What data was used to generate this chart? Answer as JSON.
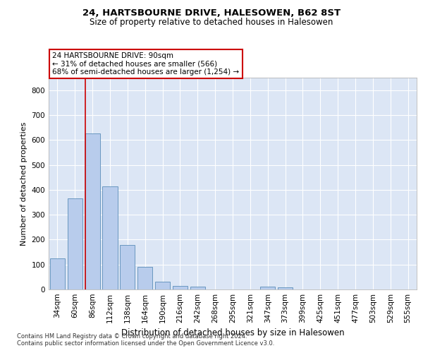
{
  "title1": "24, HARTSBOURNE DRIVE, HALESOWEN, B62 8ST",
  "title2": "Size of property relative to detached houses in Halesowen",
  "xlabel": "Distribution of detached houses by size in Halesowen",
  "ylabel": "Number of detached properties",
  "categories": [
    "34sqm",
    "60sqm",
    "86sqm",
    "112sqm",
    "138sqm",
    "164sqm",
    "190sqm",
    "216sqm",
    "242sqm",
    "268sqm",
    "295sqm",
    "321sqm",
    "347sqm",
    "373sqm",
    "399sqm",
    "425sqm",
    "451sqm",
    "477sqm",
    "503sqm",
    "529sqm",
    "555sqm"
  ],
  "values": [
    125,
    365,
    625,
    415,
    178,
    90,
    32,
    15,
    10,
    0,
    0,
    0,
    10,
    8,
    0,
    0,
    0,
    0,
    0,
    0,
    0
  ],
  "bar_color": "#b8ccec",
  "bar_edge_color": "#5b8db8",
  "background_color": "#dce6f5",
  "grid_color": "#ffffff",
  "vline_color": "#cc0000",
  "vline_x_index": 2,
  "annotation_text": "24 HARTSBOURNE DRIVE: 90sqm\n← 31% of detached houses are smaller (566)\n68% of semi-detached houses are larger (1,254) →",
  "annotation_box_color": "#ffffff",
  "annotation_box_edge_color": "#cc0000",
  "ylim": [
    0,
    850
  ],
  "yticks": [
    0,
    100,
    200,
    300,
    400,
    500,
    600,
    700,
    800
  ],
  "title1_fontsize": 9.5,
  "title2_fontsize": 8.5,
  "xlabel_fontsize": 8.5,
  "ylabel_fontsize": 8,
  "tick_fontsize": 7.5,
  "annot_fontsize": 7.5,
  "footer1": "Contains HM Land Registry data © Crown copyright and database right 2024.",
  "footer2": "Contains public sector information licensed under the Open Government Licence v3.0.",
  "footer_fontsize": 6.0
}
